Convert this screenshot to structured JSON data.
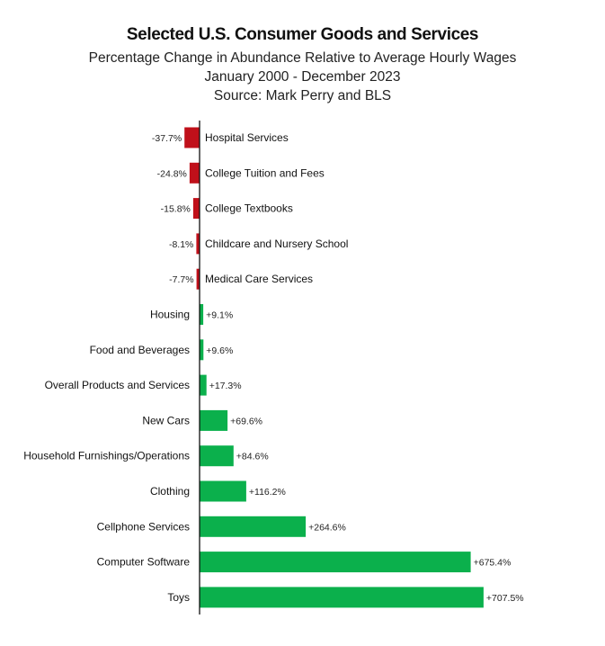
{
  "title": "Selected U.S. Consumer Goods and Services",
  "subtitle_lines": [
    "Percentage Change in Abundance Relative to Average Hourly Wages",
    "January 2000  -  December 2023",
    "Source: Mark Perry and BLS"
  ],
  "colors": {
    "negative": "#c0101a",
    "positive": "#0bb04c",
    "axis": "#111111"
  },
  "chart_data": {
    "type": "bar",
    "orientation": "horizontal",
    "title": "Selected U.S. Consumer Goods and Services",
    "subtitle": "Percentage Change in Abundance Relative to Average Hourly Wages, January 2000 - December 2023",
    "xlabel": "",
    "ylabel": "",
    "unit": "%",
    "grid": false,
    "categories": [
      "Hospital Services",
      "College Tuition and Fees",
      "College Textbooks",
      "Childcare and Nursery School",
      "Medical Care Services",
      "Housing",
      "Food and Beverages",
      "Overall Products and Services",
      "New Cars",
      "Household Furnishings/Operations",
      "Clothing",
      "Cellphone Services",
      "Computer Software",
      "Toys"
    ],
    "values": [
      -37.7,
      -24.8,
      -15.8,
      -8.1,
      -7.7,
      9.1,
      9.6,
      17.3,
      69.6,
      84.6,
      116.2,
      264.6,
      675.4,
      707.5
    ],
    "value_labels": [
      "-37.7%",
      "-24.8%",
      "-15.8%",
      "-8.1%",
      "-7.7%",
      "+9.1%",
      "+9.6%",
      "+17.3%",
      "+69.6%",
      "+84.6%",
      "+116.2%",
      "+264.6%",
      "+675.4%",
      "+707.5%"
    ]
  }
}
